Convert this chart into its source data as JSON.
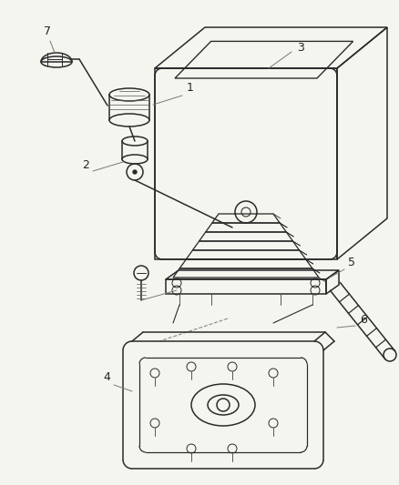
{
  "bg_color": "#f5f5f0",
  "line_color": "#2a2a2a",
  "label_color": "#222222",
  "lw": 1.1,
  "figsize": [
    4.38,
    5.33
  ],
  "dpi": 100
}
